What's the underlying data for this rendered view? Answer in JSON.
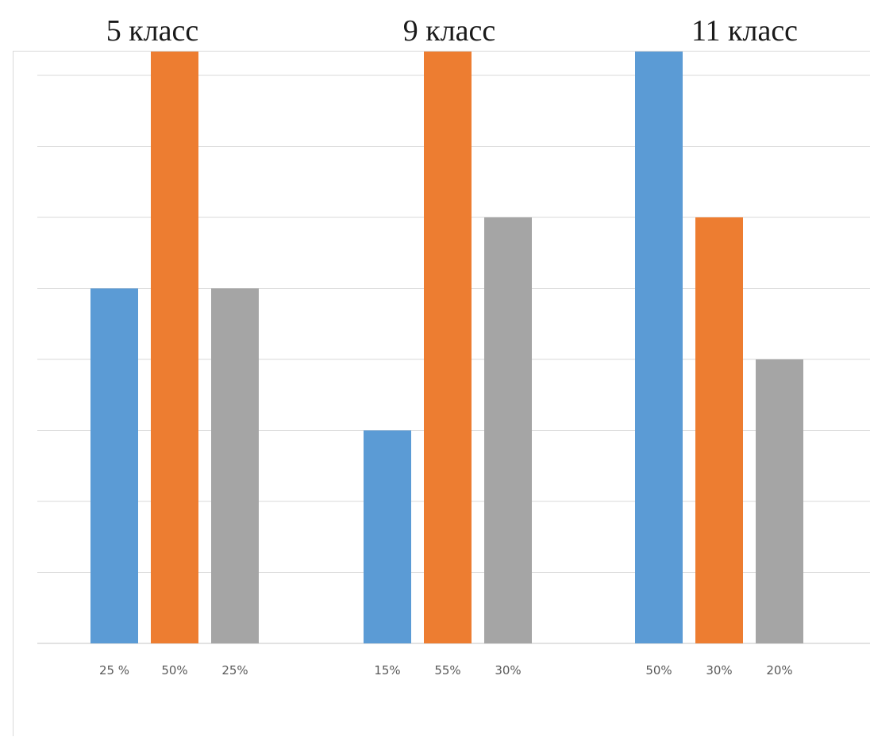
{
  "chart_data": {
    "type": "bar",
    "groups": [
      {
        "title": "5 класс",
        "values": [
          25,
          50,
          25
        ],
        "labels": [
          "25 %",
          "50%",
          "25%"
        ]
      },
      {
        "title": "9 класс",
        "values": [
          15,
          55,
          30
        ],
        "labels": [
          "15%",
          "55%",
          "30%"
        ]
      },
      {
        "title": "11 класс",
        "values": [
          50,
          30,
          20
        ],
        "labels": [
          "50%",
          "30%",
          "20%"
        ]
      }
    ],
    "series_colors": [
      "#5b9bd5",
      "#ed7d31",
      "#a5a5a5"
    ],
    "ylim": [
      0,
      60
    ],
    "grid": true,
    "gridline_step": 5,
    "legend": "none"
  }
}
